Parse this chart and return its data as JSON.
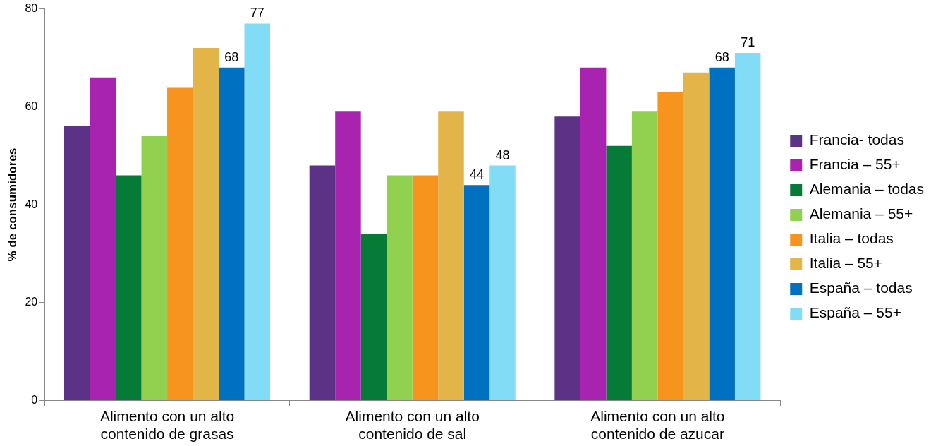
{
  "chart_data": {
    "type": "bar",
    "ylabel": "% de consumidores",
    "categories": [
      "Alimento con un alto contenido de grasas",
      "Alimento con un alto contenido de sal",
      "Alimento con un alto contenido de azucar"
    ],
    "series": [
      {
        "name": "Francia- todas",
        "color": "#5b3286",
        "values": [
          56,
          48,
          58
        ]
      },
      {
        "name": "Francia – 55+",
        "color": "#a723b0",
        "values": [
          66,
          59,
          68
        ]
      },
      {
        "name": "Alemania – todas",
        "color": "#067a37",
        "values": [
          46,
          34,
          52
        ]
      },
      {
        "name": "Alemania – 55+",
        "color": "#92d050",
        "values": [
          54,
          46,
          59
        ]
      },
      {
        "name": "Italia – todas",
        "color": "#f7941e",
        "values": [
          64,
          46,
          63
        ]
      },
      {
        "name": "Italia – 55+",
        "color": "#e3b448",
        "values": [
          72,
          59,
          67
        ]
      },
      {
        "name": "España – todas",
        "color": "#0070c0",
        "values": [
          68,
          44,
          68
        ],
        "value_labels": [
          "68",
          "44",
          "68"
        ]
      },
      {
        "name": "España – 55+",
        "color": "#82dcf5",
        "values": [
          77,
          48,
          71
        ],
        "value_labels": [
          "77",
          "48",
          "71"
        ]
      }
    ],
    "ylim": [
      0,
      80
    ],
    "yticks": [
      0,
      20,
      40,
      60,
      80
    ],
    "legend": "right",
    "grid": false
  }
}
